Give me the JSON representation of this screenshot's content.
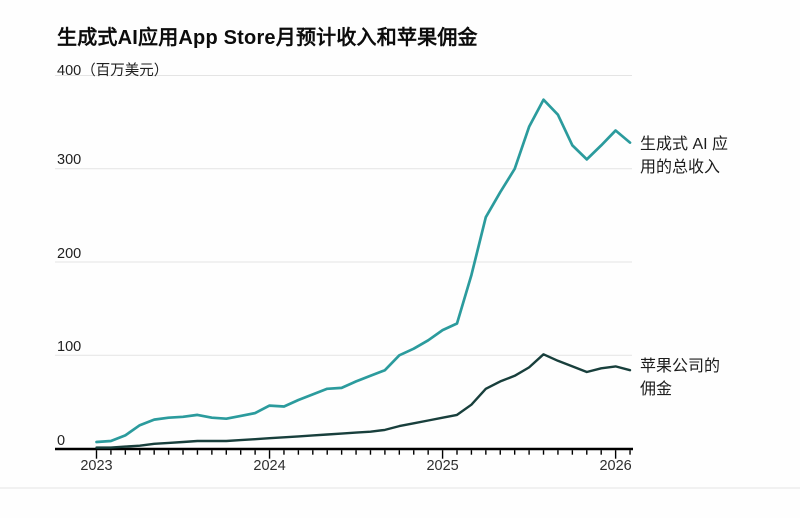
{
  "title": "生成式AI应用App Store月预计收入和苹果佣金",
  "chart_data": {
    "type": "line",
    "title": "生成式AI应用App Store月预计收入和苹果佣金",
    "unit_label": "（百万美元）",
    "x_interval": "monthly",
    "x_start": "2023-01",
    "x_end": "2026-02",
    "x_tick_labels": [
      "2023",
      "2024",
      "2025",
      "2026"
    ],
    "y_ticks": [
      0,
      100,
      200,
      300,
      400
    ],
    "ylim": [
      0,
      400
    ],
    "grid": "horizontal-only",
    "legend_position": "right-annotations",
    "series": [
      {
        "name": "生成式 AI 应用的总收入",
        "color": "#2b9b9d",
        "values": [
          7,
          8,
          14,
          25,
          31,
          33,
          34,
          36,
          33,
          32,
          35,
          38,
          46,
          45,
          52,
          58,
          64,
          65,
          72,
          78,
          84,
          100,
          107,
          116,
          127,
          134,
          186,
          248,
          275,
          300,
          345,
          374,
          358,
          325,
          310,
          325,
          341,
          328
        ]
      },
      {
        "name": "苹果公司的佣金",
        "color": "#183f3c",
        "values": [
          1,
          1,
          2,
          3,
          5,
          6,
          7,
          8,
          8,
          8,
          9,
          10,
          11,
          12,
          13,
          14,
          15,
          16,
          17,
          18,
          20,
          24,
          27,
          30,
          33,
          36,
          47,
          64,
          72,
          78,
          87,
          101,
          94,
          88,
          82,
          86,
          88,
          84
        ]
      }
    ],
    "annotations": [
      {
        "text": "生成式 AI 应\n用的总收入",
        "series": "revenue"
      },
      {
        "text": "苹果公司的\n佣金",
        "series": "commission"
      }
    ],
    "colors": {
      "grid": "#e4e4e4",
      "axis": "#000000",
      "tick_label": "#2e2e2e",
      "y_label": "#1f1f1f"
    }
  }
}
